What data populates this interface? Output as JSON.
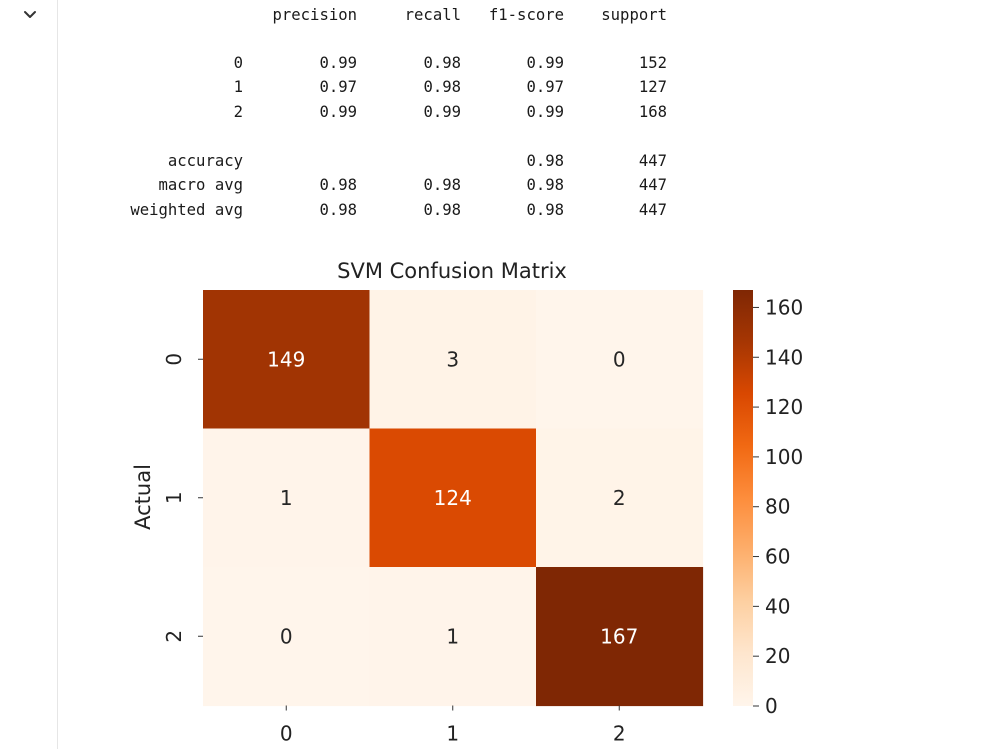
{
  "report": {
    "headers": [
      "precision",
      "recall",
      "f1-score",
      "support"
    ],
    "rows": [
      {
        "label": "0",
        "precision": "0.99",
        "recall": "0.98",
        "f1": "0.99",
        "support": "152"
      },
      {
        "label": "1",
        "precision": "0.97",
        "recall": "0.98",
        "f1": "0.97",
        "support": "127"
      },
      {
        "label": "2",
        "precision": "0.99",
        "recall": "0.99",
        "f1": "0.99",
        "support": "168"
      },
      {
        "label": "accuracy",
        "precision": "",
        "recall": "",
        "f1": "0.98",
        "support": "447"
      },
      {
        "label": "macro avg",
        "precision": "0.98",
        "recall": "0.98",
        "f1": "0.98",
        "support": "447"
      },
      {
        "label": "weighted avg",
        "precision": "0.98",
        "recall": "0.98",
        "f1": "0.98",
        "support": "447"
      }
    ]
  },
  "chart_data": {
    "type": "heatmap",
    "title": "SVM Confusion Matrix",
    "ylabel": "Actual",
    "xlabel": "",
    "x_categories": [
      "0",
      "1",
      "2"
    ],
    "y_categories": [
      "0",
      "1",
      "2"
    ],
    "values": [
      [
        149,
        3,
        0
      ],
      [
        1,
        124,
        2
      ],
      [
        0,
        1,
        167
      ]
    ],
    "colorbar": {
      "ticks": [
        0,
        20,
        40,
        60,
        80,
        100,
        120,
        140,
        160
      ],
      "vmin": 0,
      "vmax": 167,
      "colormap": "Oranges"
    }
  },
  "colors": {
    "cmap_stops": [
      "#fff5eb",
      "#fee6ce",
      "#fdd0a2",
      "#fdae6b",
      "#fd8d3c",
      "#f16913",
      "#d94801",
      "#a63603",
      "#7f2704"
    ],
    "gutter_border": "#e6e6e6",
    "text": "#1a1a1a"
  },
  "icons": {
    "collapse": "chevron-down-icon"
  }
}
